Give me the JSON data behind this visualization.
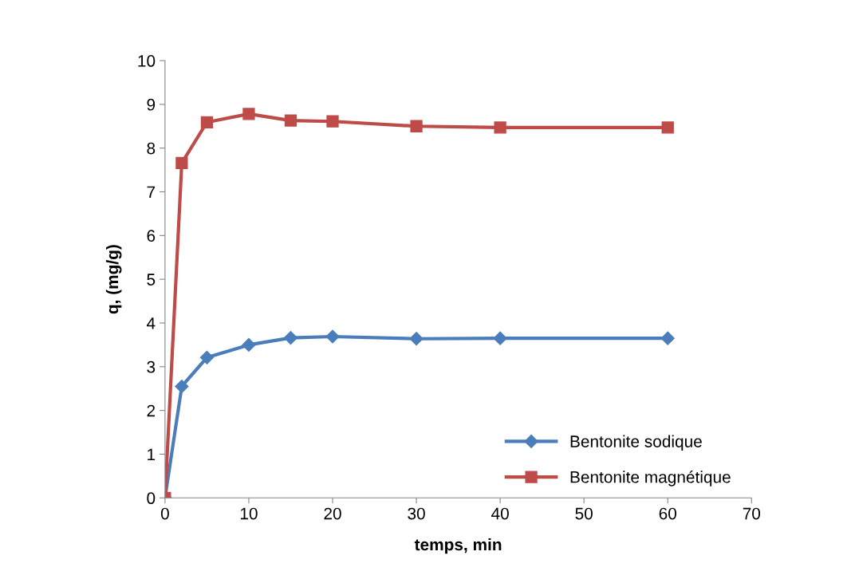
{
  "chart_data": {
    "type": "line",
    "xlabel": "temps, min",
    "ylabel": "q, (mg/g)",
    "xlim": [
      0,
      70
    ],
    "xticks": [
      0,
      10,
      20,
      30,
      40,
      50,
      60,
      70
    ],
    "ylim": [
      0,
      10
    ],
    "yticks": [
      0,
      1,
      2,
      3,
      4,
      5,
      6,
      7,
      8,
      9,
      10
    ],
    "grid": false,
    "legend": "bottom right",
    "line_style": "solid",
    "x": [
      0,
      2,
      5,
      10,
      15,
      20,
      30,
      40,
      60
    ],
    "series": [
      {
        "name": "Bentonite sodique",
        "color": "#4a7ebb",
        "marker": "diamond",
        "values": [
          0,
          2.55,
          3.21,
          3.5,
          3.66,
          3.69,
          3.64,
          3.65,
          3.65
        ]
      },
      {
        "name": "Bentonite magnétique",
        "color": "#be4b48",
        "marker": "square",
        "values": [
          0,
          7.66,
          8.59,
          8.78,
          8.63,
          8.61,
          8.5,
          8.47,
          8.47
        ]
      }
    ]
  }
}
